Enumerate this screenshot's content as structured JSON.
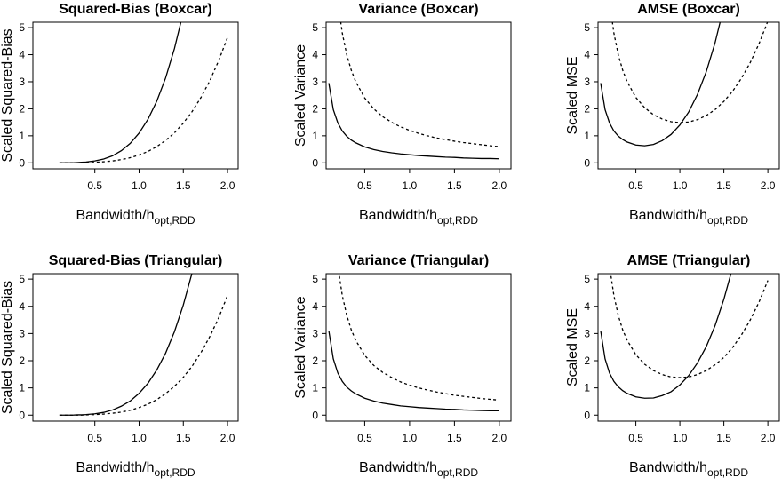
{
  "chart_data": [
    {
      "type": "line",
      "title": "Squared-Bias (Boxcar)",
      "xlabel": "Bandwidth/h",
      "xlabel_subscript": "opt,RDD",
      "ylabel": "Scaled Squared-Bias",
      "x": [
        0.1,
        0.15,
        0.2,
        0.25,
        0.3,
        0.35,
        0.4,
        0.5,
        0.6,
        0.7,
        0.8,
        0.9,
        1.0,
        1.1,
        1.2,
        1.3,
        1.4,
        1.5,
        1.6,
        1.7,
        1.8,
        1.9,
        2.0
      ],
      "series": [
        {
          "color": "#000000",
          "dash": "solid",
          "values": [
            0,
            0,
            0,
            0,
            0.01,
            0.02,
            0.03,
            0.07,
            0.14,
            0.26,
            0.45,
            0.72,
            1.1,
            1.61,
            2.28,
            3.14,
            4.23,
            5.57,
            null,
            null,
            null,
            null,
            null
          ]
        },
        {
          "color": "#000000",
          "dash": "dashed",
          "values": [
            0,
            0,
            0,
            0,
            0,
            0,
            0.01,
            0.02,
            0.04,
            0.07,
            0.12,
            0.19,
            0.29,
            0.42,
            0.6,
            0.83,
            1.11,
            1.47,
            1.9,
            2.42,
            3.04,
            3.78,
            4.64
          ]
        }
      ],
      "xlim": [
        -0.2,
        2.12
      ],
      "ylim": [
        -0.22,
        5.2
      ],
      "xticks": [
        0.5,
        {
          "value": 1.0,
          "label": "1.0"
        },
        1.5,
        {
          "value": 2.0,
          "label": "2.0"
        }
      ],
      "yticks": [
        0,
        1,
        2,
        3,
        4,
        5
      ]
    },
    {
      "type": "line",
      "title": "Variance (Boxcar)",
      "xlabel": "Bandwidth/h",
      "xlabel_subscript": "opt,RDD",
      "ylabel": "Scaled Variance",
      "x": [
        0.1,
        0.15,
        0.2,
        0.25,
        0.3,
        0.35,
        0.4,
        0.5,
        0.6,
        0.7,
        0.8,
        0.9,
        1.0,
        1.1,
        1.2,
        1.3,
        1.4,
        1.5,
        1.6,
        1.7,
        1.8,
        1.9,
        2.0
      ],
      "series": [
        {
          "color": "#000000",
          "dash": "solid",
          "values": [
            2.95,
            1.97,
            1.48,
            1.18,
            0.98,
            0.84,
            0.74,
            0.59,
            0.49,
            0.42,
            0.37,
            0.33,
            0.3,
            0.27,
            0.25,
            0.23,
            0.21,
            0.2,
            0.18,
            0.17,
            0.16,
            0.16,
            0.15
          ]
        },
        {
          "color": "#000000",
          "dash": "dashed",
          "values": [
            null,
            null,
            6.0,
            4.8,
            4.0,
            3.43,
            3.0,
            2.4,
            2.0,
            1.71,
            1.5,
            1.33,
            1.2,
            1.09,
            1.0,
            0.92,
            0.86,
            0.8,
            0.75,
            0.71,
            0.67,
            0.63,
            0.6
          ]
        }
      ],
      "xlim": [
        0.07,
        2.13
      ],
      "ylim": [
        -0.22,
        5.2
      ],
      "xticks": [
        0.5,
        {
          "value": 1.0,
          "label": "1.0"
        },
        1.5,
        {
          "value": 2.0,
          "label": "2.0"
        }
      ],
      "yticks": [
        0,
        1,
        2,
        3,
        4,
        5
      ]
    },
    {
      "type": "line",
      "title": "AMSE (Boxcar)",
      "xlabel": "Bandwidth/h",
      "xlabel_subscript": "opt,RDD",
      "ylabel": "Scaled MSE",
      "x": [
        0.1,
        0.15,
        0.2,
        0.25,
        0.3,
        0.35,
        0.4,
        0.5,
        0.6,
        0.7,
        0.8,
        0.9,
        1.0,
        1.1,
        1.2,
        1.3,
        1.4,
        1.5,
        1.6,
        1.7,
        1.8,
        1.9,
        2.0
      ],
      "series": [
        {
          "color": "#000000",
          "dash": "solid",
          "values": [
            2.95,
            1.97,
            1.48,
            1.18,
            0.99,
            0.86,
            0.77,
            0.66,
            0.63,
            0.68,
            0.82,
            1.05,
            1.4,
            1.88,
            2.53,
            3.37,
            4.44,
            5.77,
            null,
            null,
            null,
            null,
            null
          ]
        },
        {
          "color": "#000000",
          "dash": "dashed",
          "values": [
            null,
            null,
            6.0,
            4.8,
            4.0,
            3.43,
            3.01,
            2.42,
            2.04,
            1.78,
            1.62,
            1.52,
            1.49,
            1.51,
            1.6,
            1.75,
            1.97,
            2.27,
            2.65,
            3.13,
            3.71,
            4.41,
            5.24
          ]
        }
      ],
      "xlim": [
        0.07,
        2.13
      ],
      "ylim": [
        -0.22,
        5.2
      ],
      "xticks": [
        0.5,
        {
          "value": 1.0,
          "label": "1.0"
        },
        1.5,
        {
          "value": 2.0,
          "label": "2.0"
        }
      ],
      "yticks": [
        0,
        1,
        2,
        3,
        4,
        5
      ]
    },
    {
      "type": "line",
      "title": "Squared-Bias (Triangular)",
      "xlabel": "Bandwidth/h",
      "xlabel_subscript": "opt,RDD",
      "ylabel": "Scaled Squared-Bias",
      "x": [
        0.1,
        0.15,
        0.2,
        0.25,
        0.3,
        0.35,
        0.4,
        0.5,
        0.6,
        0.7,
        0.8,
        0.9,
        1.0,
        1.1,
        1.2,
        1.3,
        1.4,
        1.5,
        1.6,
        1.7,
        1.8,
        1.9,
        2.0
      ],
      "series": [
        {
          "color": "#000000",
          "dash": "solid",
          "values": [
            0,
            0,
            0,
            0,
            0.01,
            0.01,
            0.02,
            0.05,
            0.1,
            0.19,
            0.33,
            0.52,
            0.8,
            1.17,
            1.66,
            2.28,
            3.07,
            4.05,
            5.24,
            null,
            null,
            null,
            null
          ]
        },
        {
          "color": "#000000",
          "dash": "dashed",
          "values": [
            0,
            0,
            0,
            0,
            0,
            0,
            0.01,
            0.02,
            0.04,
            0.07,
            0.11,
            0.18,
            0.28,
            0.4,
            0.57,
            0.79,
            1.06,
            1.39,
            1.8,
            2.3,
            2.89,
            3.58,
            4.4
          ]
        }
      ],
      "xlim": [
        -0.2,
        2.12
      ],
      "ylim": [
        -0.22,
        5.2
      ],
      "xticks": [
        0.5,
        {
          "value": 1.0,
          "label": "1.0"
        },
        1.5,
        {
          "value": 2.0,
          "label": "2.0"
        }
      ],
      "yticks": [
        0,
        1,
        2,
        3,
        4,
        5
      ]
    },
    {
      "type": "line",
      "title": "Variance (Triangular)",
      "xlabel": "Bandwidth/h",
      "xlabel_subscript": "opt,RDD",
      "ylabel": "Scaled Variance",
      "x": [
        0.1,
        0.15,
        0.2,
        0.25,
        0.3,
        0.35,
        0.4,
        0.5,
        0.6,
        0.7,
        0.8,
        0.9,
        1.0,
        1.1,
        1.2,
        1.3,
        1.4,
        1.5,
        1.6,
        1.7,
        1.8,
        1.9,
        2.0
      ],
      "series": [
        {
          "color": "#000000",
          "dash": "solid",
          "values": [
            3.1,
            2.07,
            1.55,
            1.24,
            1.03,
            0.89,
            0.78,
            0.62,
            0.52,
            0.44,
            0.39,
            0.34,
            0.31,
            0.28,
            0.26,
            0.24,
            0.22,
            0.21,
            0.19,
            0.18,
            0.17,
            0.16,
            0.16
          ]
        },
        {
          "color": "#000000",
          "dash": "dashed",
          "values": [
            null,
            null,
            5.5,
            4.4,
            3.67,
            3.14,
            2.75,
            2.2,
            1.83,
            1.57,
            1.38,
            1.22,
            1.1,
            1.0,
            0.92,
            0.85,
            0.79,
            0.73,
            0.69,
            0.65,
            0.61,
            0.58,
            0.55
          ]
        }
      ],
      "xlim": [
        0.07,
        2.13
      ],
      "ylim": [
        -0.22,
        5.2
      ],
      "xticks": [
        0.5,
        {
          "value": 1.0,
          "label": "1.0"
        },
        1.5,
        {
          "value": 2.0,
          "label": "2.0"
        }
      ],
      "yticks": [
        0,
        1,
        2,
        3,
        4,
        5
      ]
    },
    {
      "type": "line",
      "title": "AMSE (Triangular)",
      "xlabel": "Bandwidth/h",
      "xlabel_subscript": "opt,RDD",
      "ylabel": "Scaled MSE",
      "x": [
        0.1,
        0.15,
        0.2,
        0.25,
        0.3,
        0.35,
        0.4,
        0.5,
        0.6,
        0.7,
        0.8,
        0.9,
        1.0,
        1.1,
        1.2,
        1.3,
        1.4,
        1.5,
        1.6,
        1.7,
        1.8,
        1.9,
        2.0
      ],
      "series": [
        {
          "color": "#000000",
          "dash": "solid",
          "values": [
            3.1,
            2.07,
            1.55,
            1.24,
            1.04,
            0.9,
            0.8,
            0.67,
            0.62,
            0.63,
            0.72,
            0.86,
            1.11,
            1.45,
            1.92,
            2.52,
            3.29,
            4.26,
            5.43,
            null,
            null,
            null,
            null
          ]
        },
        {
          "color": "#000000",
          "dash": "dashed",
          "values": [
            null,
            null,
            5.5,
            4.4,
            3.67,
            3.14,
            2.76,
            2.22,
            1.87,
            1.64,
            1.49,
            1.4,
            1.38,
            1.4,
            1.49,
            1.64,
            1.85,
            2.12,
            2.49,
            2.95,
            3.5,
            4.16,
            4.95
          ]
        }
      ],
      "xlim": [
        0.07,
        2.13
      ],
      "ylim": [
        -0.22,
        5.2
      ],
      "xticks": [
        0.5,
        {
          "value": 1.0,
          "label": "1.0"
        },
        1.5,
        {
          "value": 2.0,
          "label": "2.0"
        }
      ],
      "yticks": [
        0,
        1,
        2,
        3,
        4,
        5
      ]
    }
  ]
}
